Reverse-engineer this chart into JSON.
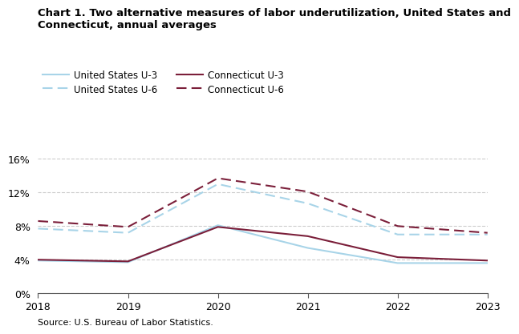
{
  "title_line1": "Chart 1. Two alternative measures of labor underutilization, United States and",
  "title_line2": "Connecticut, annual averages",
  "source": "Source: U.S. Bureau of Labor Statistics.",
  "years": [
    2018,
    2019,
    2020,
    2021,
    2022,
    2023
  ],
  "us_u3": [
    3.9,
    3.7,
    8.1,
    5.4,
    3.6,
    3.6
  ],
  "us_u6": [
    7.7,
    7.2,
    13.0,
    10.7,
    7.0,
    7.0
  ],
  "ct_u3": [
    4.0,
    3.8,
    7.9,
    6.8,
    4.3,
    3.9
  ],
  "ct_u6": [
    8.6,
    7.9,
    13.7,
    12.1,
    8.0,
    7.2
  ],
  "us_color": "#a8d4e8",
  "ct_color": "#7b1f3a",
  "ylim": [
    0,
    17.5
  ],
  "yticks": [
    0,
    4,
    8,
    12,
    16
  ],
  "ytick_labels": [
    "0%",
    "4%",
    "8%",
    "12%",
    "16%"
  ],
  "figsize": [
    6.44,
    4.08
  ],
  "dpi": 100
}
